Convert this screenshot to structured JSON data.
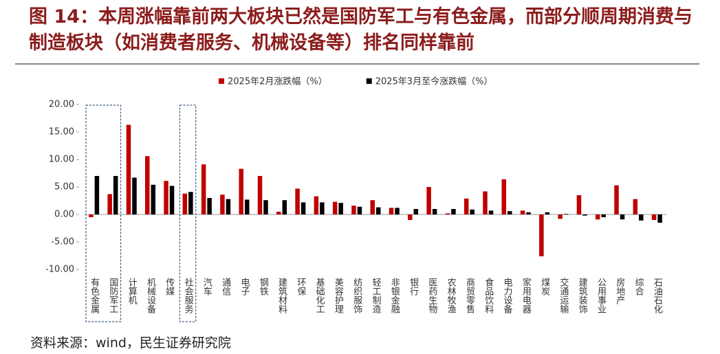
{
  "chart_data": {
    "type": "bar",
    "title": "图 14：本周涨幅靠前两大板块已然是国防军工与有色金属，而部分顺周期消费与制造板块（如消费者服务、机械设备等）排名同样靠前",
    "source": "资料来源：wind，民生证券研究院",
    "categories": [
      "有色金属",
      "国防军工",
      "计算机",
      "机械设备",
      "传媒",
      "社会服务",
      "汽车",
      "通信",
      "电子",
      "钢铁",
      "建筑材料",
      "环保",
      "基础化工",
      "美容护理",
      "纺织服饰",
      "轻工制造",
      "非银金融",
      "银行",
      "医药生物",
      "农林牧渔",
      "商贸零售",
      "食品饮料",
      "电力设备",
      "家用电器",
      "煤炭",
      "交通运输",
      "建筑装饰",
      "公用事业",
      "房地产",
      "综合",
      "石油石化"
    ],
    "series": [
      {
        "name": "2025年2月涨跌幅（%）",
        "color": "#c00000",
        "values": [
          -0.5,
          3.7,
          16.3,
          10.6,
          6.1,
          3.8,
          9.1,
          3.6,
          8.3,
          7.0,
          0.5,
          4.7,
          3.3,
          2.3,
          1.6,
          2.6,
          1.2,
          -1.0,
          5.0,
          0.2,
          2.9,
          4.2,
          6.4,
          0.7,
          -7.6,
          -0.8,
          3.5,
          -0.9,
          5.3,
          2.8,
          -1.0
        ]
      },
      {
        "name": "2025年3月至今涨跌幅（%）",
        "color": "#000000",
        "values": [
          7.0,
          7.0,
          6.7,
          5.4,
          5.2,
          4.1,
          3.0,
          2.8,
          2.7,
          2.6,
          2.6,
          2.2,
          2.2,
          2.1,
          1.4,
          1.3,
          1.2,
          1.0,
          1.0,
          1.0,
          0.9,
          0.7,
          0.6,
          0.4,
          0.4,
          0.1,
          -0.2,
          -0.5,
          -0.9,
          -1.1,
          -1.5
        ]
      }
    ],
    "ylim": [
      -10,
      20
    ],
    "yticks": [
      {
        "value": -10,
        "label": "-10.00"
      },
      {
        "value": -5,
        "label": "-5.00"
      },
      {
        "value": 0,
        "label": "0.00"
      },
      {
        "value": 5,
        "label": "5.00"
      },
      {
        "value": 10,
        "label": "10.00"
      },
      {
        "value": 15,
        "label": "15.00"
      },
      {
        "value": 20,
        "label": "20.00"
      }
    ],
    "grid": false
  }
}
